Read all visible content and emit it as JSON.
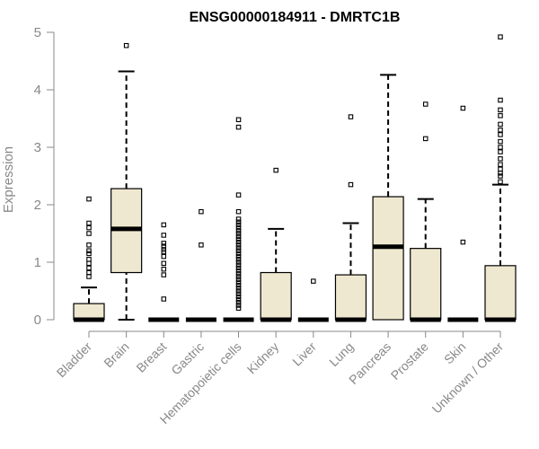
{
  "chart_data": {
    "type": "boxplot",
    "title": "ENSG00000184911 - DMRTC1B",
    "ylabel": "Expression",
    "xlabel": "",
    "ylim": [
      0,
      5
    ],
    "yticks": [
      0,
      1,
      2,
      3,
      4,
      5
    ],
    "box_fill": "#efe8d0",
    "categories": [
      "Bladder",
      "Brain",
      "Breast",
      "Gastric",
      "Hematopoietic cells",
      "Kidney",
      "Liver",
      "Lung",
      "Pancreas",
      "Prostate",
      "Skin",
      "Unknown / Other"
    ],
    "boxes": [
      {
        "whisker_low": 0,
        "q1": 0,
        "median": 0,
        "q3": 0.28,
        "whisker_high": 0.56,
        "outliers": [
          0.75,
          0.82,
          0.9,
          0.98,
          1.05,
          1.15,
          1.2,
          1.3,
          1.5,
          1.6,
          1.68,
          2.1
        ]
      },
      {
        "whisker_low": 0,
        "q1": 0.82,
        "median": 1.58,
        "q3": 2.28,
        "whisker_high": 4.32,
        "outliers": [
          4.77
        ]
      },
      {
        "whisker_low": 0,
        "q1": 0,
        "median": 0,
        "q3": 0,
        "whisker_high": 0,
        "outliers": [
          0.36,
          0.78,
          0.88,
          0.98,
          1.1,
          1.18,
          1.22,
          1.28,
          1.33,
          1.47,
          1.65
        ]
      },
      {
        "whisker_low": 0,
        "q1": 0,
        "median": 0,
        "q3": 0,
        "whisker_high": 0,
        "outliers": [
          1.3,
          1.88
        ]
      },
      {
        "whisker_low": 0,
        "q1": 0,
        "median": 0,
        "q3": 0,
        "whisker_high": 0,
        "outliers": [
          0.2,
          0.25,
          0.3,
          0.35,
          0.4,
          0.45,
          0.5,
          0.55,
          0.6,
          0.65,
          0.7,
          0.75,
          0.8,
          0.85,
          0.9,
          0.95,
          1.0,
          1.05,
          1.1,
          1.15,
          1.2,
          1.25,
          1.3,
          1.35,
          1.4,
          1.45,
          1.5,
          1.55,
          1.6,
          1.65,
          1.7,
          1.75,
          1.88,
          2.17,
          3.35,
          3.48
        ]
      },
      {
        "whisker_low": 0,
        "q1": 0,
        "median": 0,
        "q3": 0.82,
        "whisker_high": 1.58,
        "outliers": [
          2.6
        ]
      },
      {
        "whisker_low": 0,
        "q1": 0,
        "median": 0,
        "q3": 0,
        "whisker_high": 0,
        "outliers": [
          0.67
        ]
      },
      {
        "whisker_low": 0,
        "q1": 0,
        "median": 0,
        "q3": 0.78,
        "whisker_high": 1.68,
        "outliers": [
          2.35,
          3.53
        ]
      },
      {
        "whisker_low": 0,
        "q1": 0,
        "median": 1.27,
        "q3": 2.14,
        "whisker_high": 4.26,
        "outliers": []
      },
      {
        "whisker_low": 0,
        "q1": 0,
        "median": 0,
        "q3": 1.24,
        "whisker_high": 2.1,
        "outliers": [
          3.15,
          3.75
        ]
      },
      {
        "whisker_low": 0,
        "q1": 0,
        "median": 0,
        "q3": 0,
        "whisker_high": 0,
        "outliers": [
          1.35,
          3.68
        ]
      },
      {
        "whisker_low": 0,
        "q1": 0,
        "median": 0,
        "q3": 0.94,
        "whisker_high": 2.35,
        "outliers": [
          2.4,
          2.5,
          2.55,
          2.62,
          2.7,
          2.8,
          2.92,
          3.0,
          3.1,
          3.22,
          3.3,
          3.4,
          3.55,
          3.65,
          3.82,
          4.92
        ]
      }
    ]
  }
}
